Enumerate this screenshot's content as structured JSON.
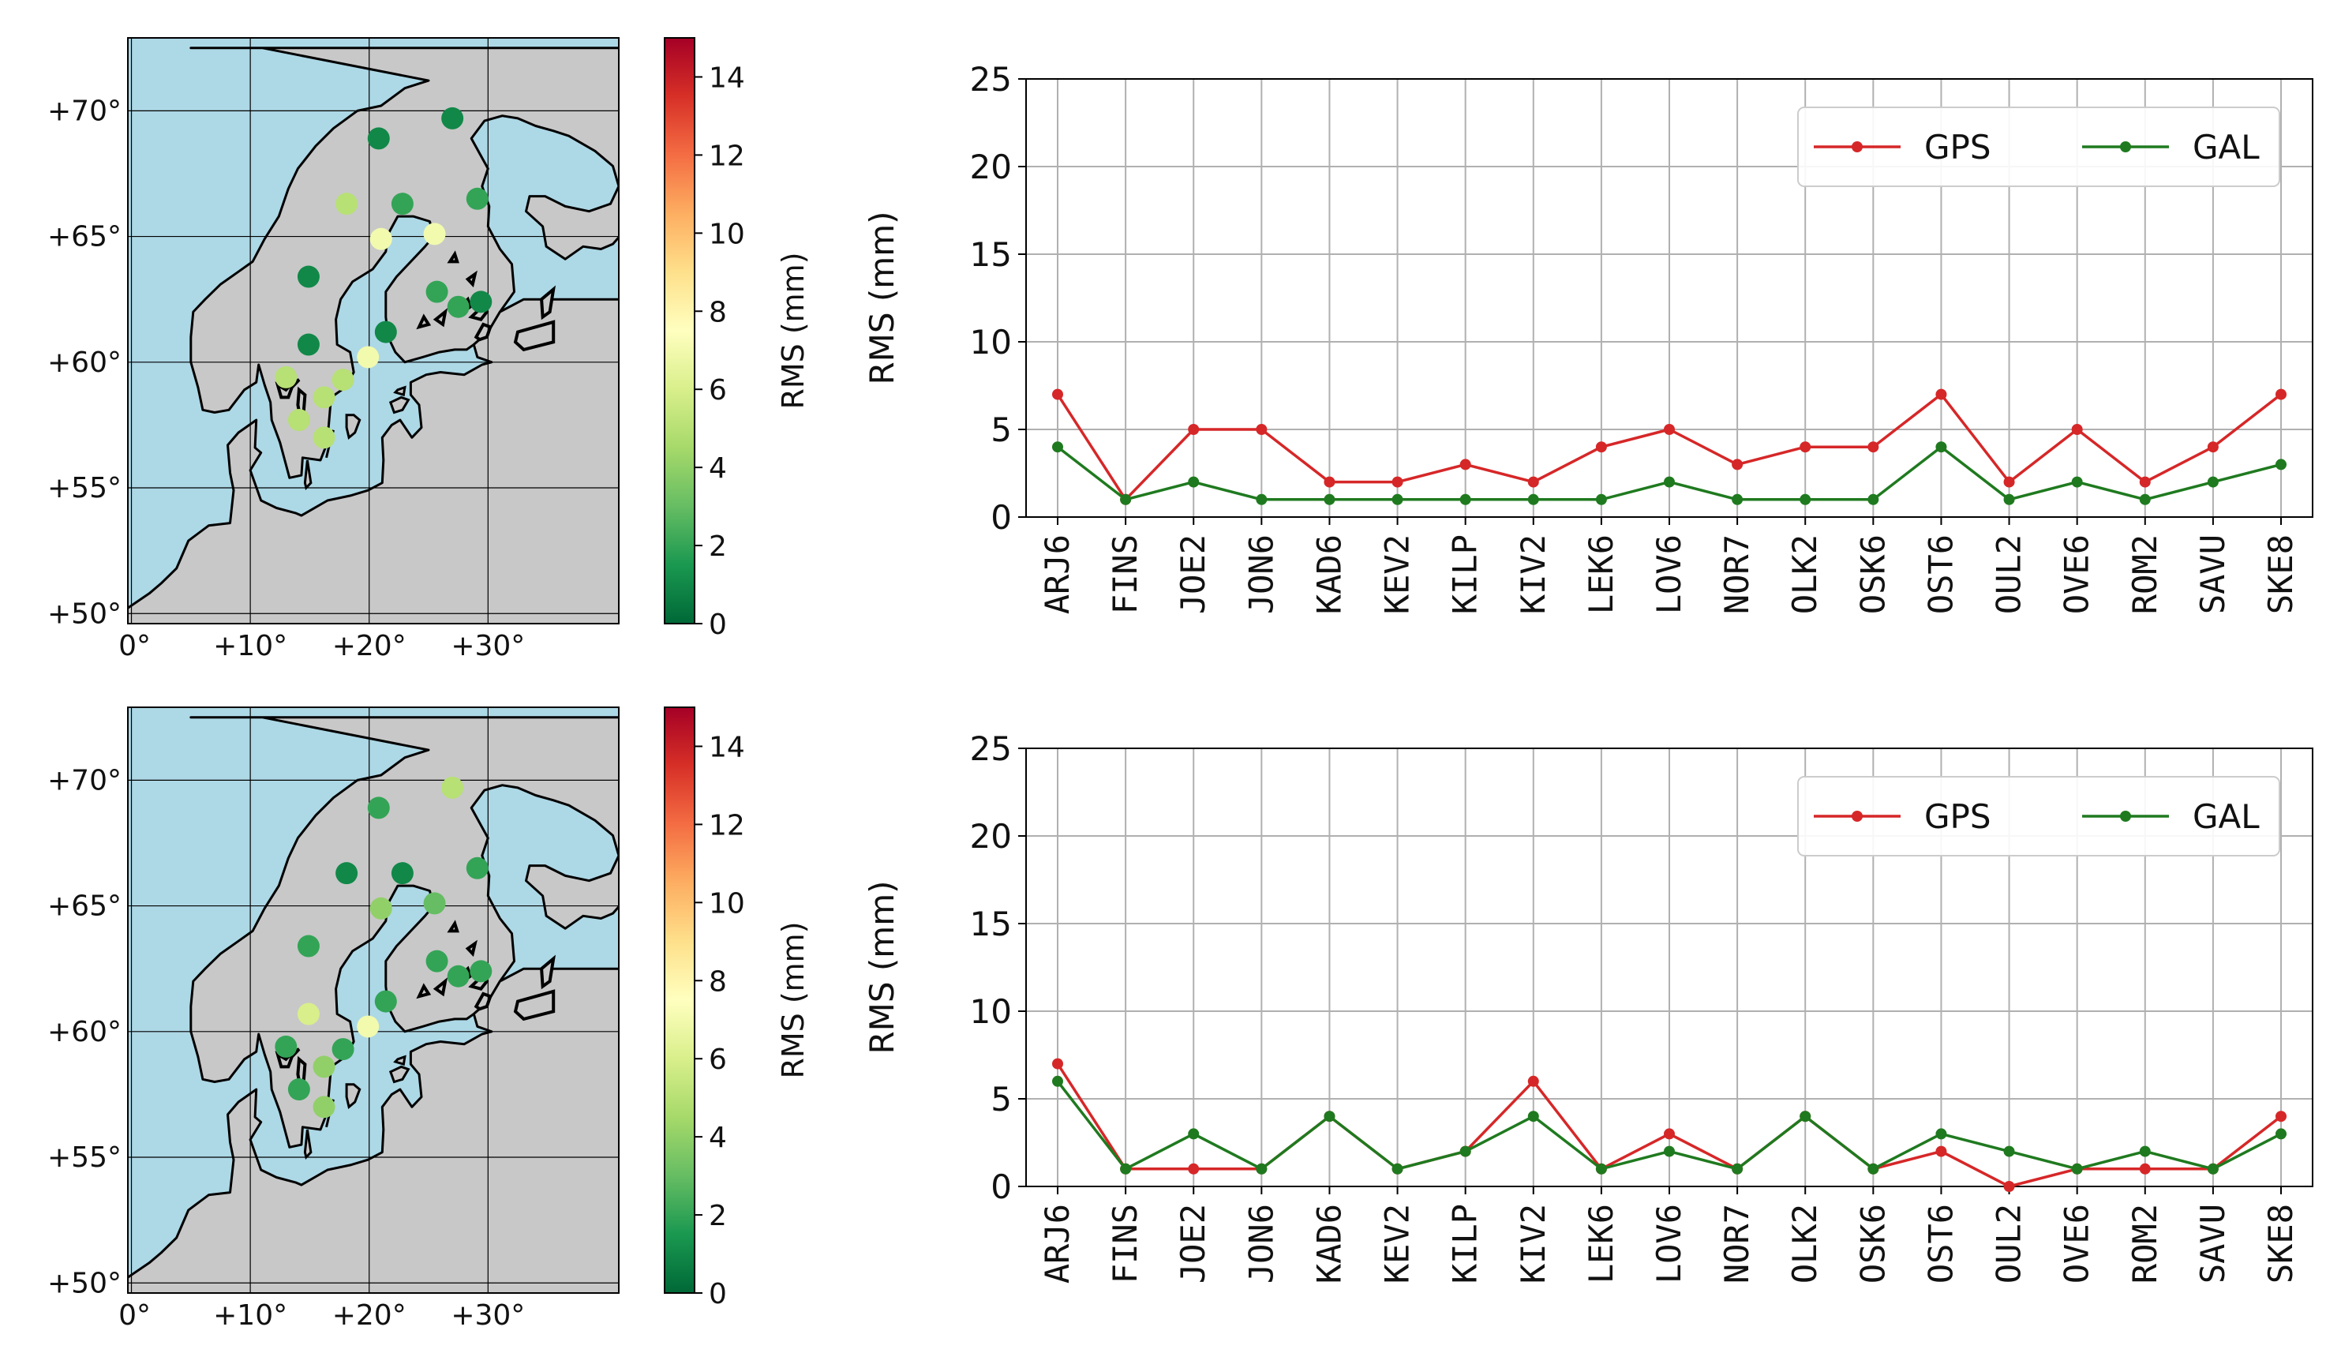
{
  "map_style": {
    "sea_color": "#add8e6",
    "land_color": "#c8c8c8",
    "coast_color": "#000000",
    "grid_color": "#000000",
    "lon_ticks": [
      0,
      10,
      20,
      30
    ],
    "lon_tick_labels": [
      "0°",
      "+10°",
      "+20°",
      "+30°"
    ],
    "lat_ticks": [
      50,
      55,
      60,
      65,
      70
    ],
    "lat_tick_labels": [
      "+50°",
      "+55°",
      "+60°",
      "+65°",
      "+70°"
    ]
  },
  "colorbar": {
    "label": "RMS (mm)",
    "min": 0,
    "max": 15,
    "ticks": [
      "0",
      "2",
      "4",
      "6",
      "8",
      "10",
      "12",
      "14"
    ],
    "tick_values": [
      0,
      2,
      4,
      6,
      8,
      10,
      12,
      14
    ],
    "colormap": [
      "#006837",
      "#1a9850",
      "#66bd63",
      "#a6d96a",
      "#d9ef8b",
      "#ffffbf",
      "#fee08b",
      "#fdae61",
      "#f46d43",
      "#d73027",
      "#a50026"
    ]
  },
  "stations": [
    {
      "code": "ARJ6",
      "lon": 18.1,
      "lat": 66.3
    },
    {
      "code": "FINS",
      "lon": 19.9,
      "lat": 60.2
    },
    {
      "code": "JOE2",
      "lon": 29.4,
      "lat": 62.4
    },
    {
      "code": "JON6",
      "lon": 14.1,
      "lat": 57.7
    },
    {
      "code": "KAD6",
      "lon": 16.2,
      "lat": 57.0
    },
    {
      "code": "KEV2",
      "lon": 27.0,
      "lat": 69.7
    },
    {
      "code": "KILP",
      "lon": 20.8,
      "lat": 68.9
    },
    {
      "code": "KIV2",
      "lon": 25.7,
      "lat": 62.8
    },
    {
      "code": "LEK6",
      "lon": 14.9,
      "lat": 60.7
    },
    {
      "code": "LOV6",
      "lon": 17.8,
      "lat": 59.3
    },
    {
      "code": "NOR7",
      "lon": 16.2,
      "lat": 58.6
    },
    {
      "code": "OLK2",
      "lon": 29.1,
      "lat": 66.5
    },
    {
      "code": "OSK6",
      "lon": 14.9,
      "lat": 63.4
    },
    {
      "code": "OST6",
      "lon": 21.0,
      "lat": 64.9
    },
    {
      "code": "OUL2",
      "lon": 25.5,
      "lat": 65.1
    },
    {
      "code": "OVE6",
      "lon": 22.8,
      "lat": 66.3
    },
    {
      "code": "ROM2",
      "lon": 21.4,
      "lat": 61.2
    },
    {
      "code": "SAVU",
      "lon": 27.5,
      "lat": 62.2
    },
    {
      "code": "SKE8",
      "lon": 13.0,
      "lat": 59.4
    }
  ],
  "chart_data": [
    {
      "type": "line",
      "panel": "top",
      "categories": [
        "ARJ6",
        "FINS",
        "JOE2",
        "JON6",
        "KAD6",
        "KEV2",
        "KILP",
        "KIV2",
        "LEK6",
        "LOV6",
        "NOR7",
        "OLK2",
        "OSK6",
        "OST6",
        "OUL2",
        "OVE6",
        "ROM2",
        "SAVU",
        "SKE8"
      ],
      "series": [
        {
          "name": "GPS",
          "color": "#d62728",
          "values": [
            7,
            1,
            5,
            5,
            2,
            2,
            3,
            2,
            4,
            5,
            3,
            4,
            4,
            7,
            2,
            5,
            2,
            4,
            7
          ]
        },
        {
          "name": "GAL",
          "color": "#1f7a1f",
          "values": [
            4,
            1,
            2,
            1,
            1,
            1,
            1,
            1,
            1,
            2,
            1,
            1,
            1,
            4,
            1,
            2,
            1,
            2,
            3
          ]
        }
      ],
      "ylabel": "RMS (mm)",
      "ylim": [
        0,
        25
      ],
      "yticks": [
        "0",
        "5",
        "10",
        "15",
        "20",
        "25"
      ],
      "ytick_values": [
        0,
        5,
        10,
        15,
        20,
        25
      ],
      "grid": true,
      "legend": "top-right",
      "map_rms": [
        5,
        7,
        1,
        5,
        5,
        1,
        1,
        2,
        1,
        5,
        5,
        2,
        1,
        7,
        7,
        2,
        1,
        2,
        5
      ]
    },
    {
      "type": "line",
      "panel": "bottom",
      "categories": [
        "ARJ6",
        "FINS",
        "JOE2",
        "JON6",
        "KAD6",
        "KEV2",
        "KILP",
        "KIV2",
        "LEK6",
        "LOV6",
        "NOR7",
        "OLK2",
        "OSK6",
        "OST6",
        "OUL2",
        "OVE6",
        "ROM2",
        "SAVU",
        "SKE8"
      ],
      "series": [
        {
          "name": "GPS",
          "color": "#d62728",
          "values": [
            7,
            1,
            1,
            1,
            4,
            1,
            2,
            6,
            1,
            3,
            1,
            4,
            1,
            2,
            0,
            1,
            1,
            1,
            4
          ]
        },
        {
          "name": "GAL",
          "color": "#1f7a1f",
          "values": [
            6,
            1,
            3,
            1,
            4,
            1,
            2,
            4,
            1,
            2,
            1,
            4,
            1,
            3,
            2,
            1,
            2,
            1,
            3
          ]
        }
      ],
      "ylabel": "RMS (mm)",
      "ylim": [
        0,
        25
      ],
      "yticks": [
        "0",
        "5",
        "10",
        "15",
        "20",
        "25"
      ],
      "ytick_values": [
        0,
        5,
        10,
        15,
        20,
        25
      ],
      "grid": true,
      "legend": "top-right",
      "map_rms": [
        1,
        7,
        2,
        2,
        4,
        5,
        2,
        2,
        6,
        2,
        4,
        2,
        2,
        4,
        3,
        1,
        2,
        2,
        2
      ]
    }
  ]
}
